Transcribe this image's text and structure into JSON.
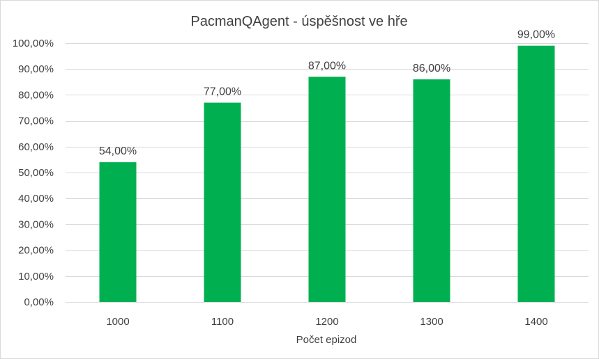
{
  "chart_data": {
    "type": "bar",
    "title": "PacmanQAgent - úspěšnost ve hře",
    "xlabel": "Počet epizod",
    "ylabel": "",
    "categories": [
      "1000",
      "1100",
      "1200",
      "1300",
      "1400"
    ],
    "values": [
      54,
      77,
      87,
      86,
      99
    ],
    "value_labels": [
      "54,00%",
      "77,00%",
      "87,00%",
      "86,00%",
      "99,00%"
    ],
    "ylim": [
      0,
      100
    ],
    "y_ticks": [
      0,
      10,
      20,
      30,
      40,
      50,
      60,
      70,
      80,
      90,
      100
    ],
    "y_tick_labels": [
      "0,00%",
      "10,00%",
      "20,00%",
      "30,00%",
      "40,00%",
      "50,00%",
      "60,00%",
      "70,00%",
      "80,00%",
      "90,00%",
      "100,00%"
    ],
    "grid": true,
    "legend": "none",
    "colors": {
      "bar": "#00b050",
      "grid": "#d9d9d9",
      "text": "#404040"
    }
  }
}
